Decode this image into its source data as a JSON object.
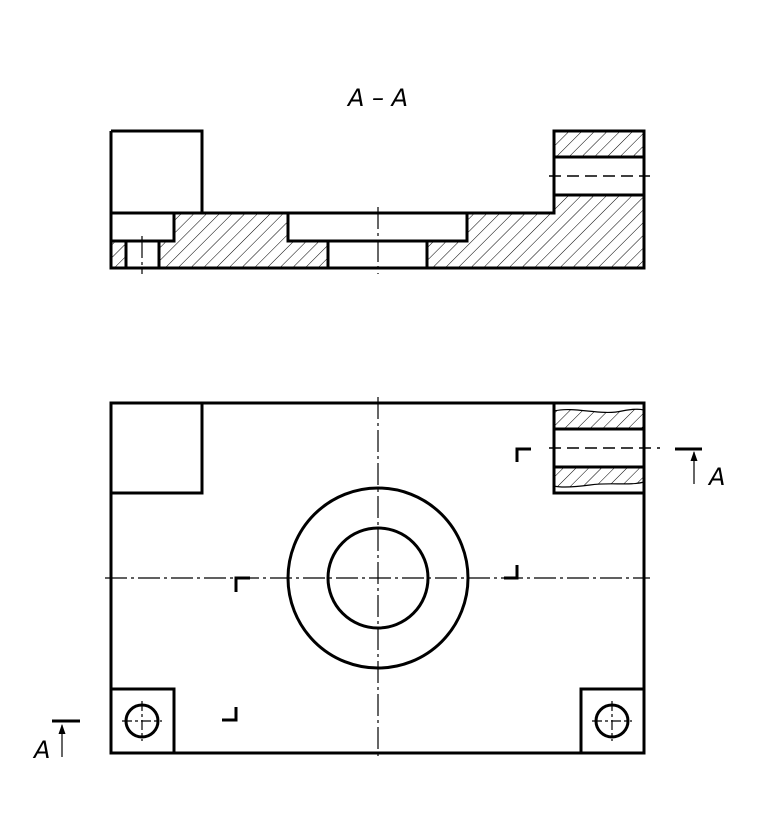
{
  "section_title": "A – A",
  "cut_label_right": "A",
  "cut_label_left": "A"
}
